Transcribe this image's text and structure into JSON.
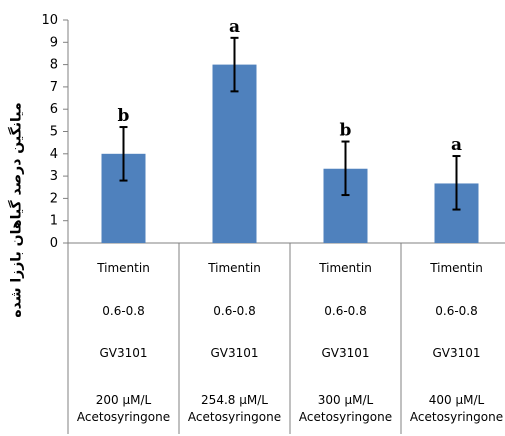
{
  "chart_data": {
    "type": "bar",
    "ylabel": "میانگین درصد گیاهان باززا شده",
    "ylim": [
      0,
      10
    ],
    "yticks": [
      0,
      1,
      2,
      3,
      4,
      5,
      6,
      7,
      8,
      9,
      10
    ],
    "grid": false,
    "bar_color": "#4f81bd",
    "categories": [
      {
        "lines": [
          "Timentin",
          "0.6-0.8",
          "GV3101",
          "200 µM/L",
          "Acetosyringone"
        ]
      },
      {
        "lines": [
          "Timentin",
          "0.6-0.8",
          "GV3101",
          "254.8 µM/L",
          "Acetosyringone"
        ]
      },
      {
        "lines": [
          "Timentin",
          "0.6-0.8",
          "GV3101",
          "300 µM/L",
          "Acetosyringone"
        ]
      },
      {
        "lines": [
          "Timentin",
          "0.6-0.8",
          "GV3101",
          "400 µM/L",
          "Acetosyringone"
        ]
      }
    ],
    "values": [
      4.0,
      8.0,
      3.33,
      2.67
    ],
    "error_low": [
      2.8,
      6.8,
      2.15,
      1.5
    ],
    "error_high": [
      5.2,
      9.2,
      4.55,
      3.9
    ],
    "annotations": [
      "b",
      "a",
      "b",
      "a"
    ]
  }
}
